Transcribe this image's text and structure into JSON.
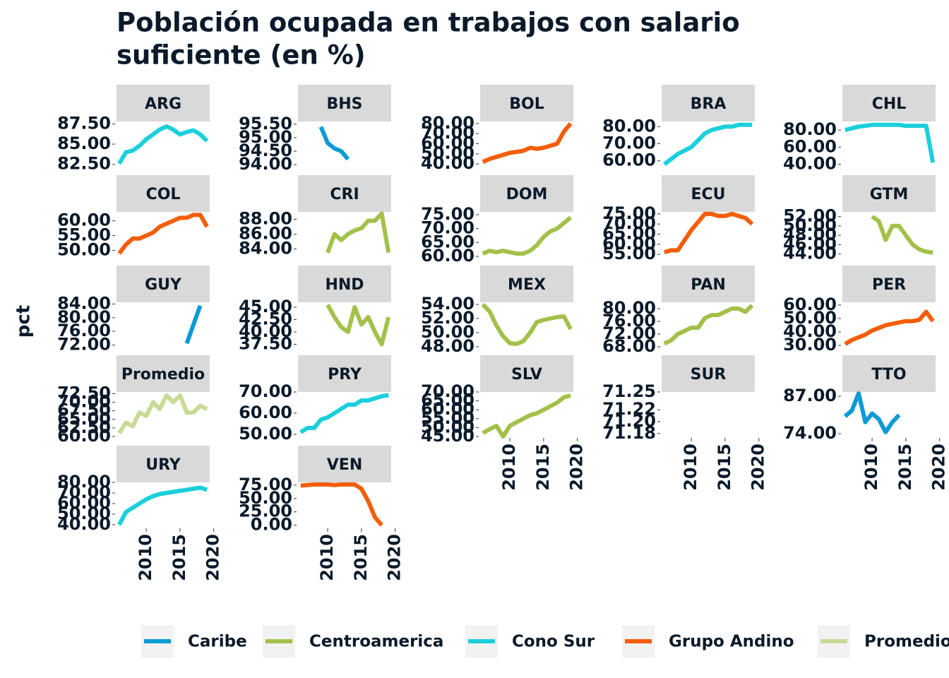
{
  "figure": {
    "title": [
      "Población ocupada en trabajos con salario",
      "suficiente (en %)"
    ],
    "ylabel": "pct",
    "legend": [
      {
        "name": "Caribe",
        "color": "#0d9ad6"
      },
      {
        "name": "Centroamerica",
        "color": "#a3c14a"
      },
      {
        "name": "Cono Sur",
        "color": "#1bcfdb"
      },
      {
        "name": "Grupo Andino",
        "color": "#f45d0a"
      },
      {
        "name": "Promedio",
        "color": "#c8db96"
      }
    ]
  },
  "chart_data": [
    {
      "type": "line",
      "title": "ARG",
      "color": "#1bcfdb",
      "x": [
        2006,
        2007,
        2008,
        2009,
        2010,
        2011,
        2012,
        2013,
        2014,
        2015,
        2016,
        2017,
        2018,
        2019
      ],
      "values": [
        82.6,
        84,
        84.2,
        84.8,
        85.6,
        86.2,
        86.8,
        87.2,
        86.8,
        86.2,
        86.5,
        86.7,
        86.2,
        85.4
      ],
      "xlim": [
        2005.6,
        2019.4
      ],
      "ylim": [
        82.3,
        87.8
      ],
      "yticks": [
        {
          "value": 82.5,
          "label": "82.50"
        },
        {
          "value": 85,
          "label": "85.00"
        },
        {
          "value": 87.5,
          "label": "87.50"
        }
      ]
    },
    {
      "type": "line",
      "title": "BHS",
      "color": "#0d9ad6",
      "x": [
        2009,
        2010,
        2011,
        2012,
        2013
      ],
      "values": [
        95.4,
        94.8,
        94.6,
        94.5,
        94.2
      ],
      "xlim": [
        2005.6,
        2019.4
      ],
      "ylim": [
        93.95,
        95.6
      ],
      "yticks": [
        {
          "value": 94,
          "label": "94.00"
        },
        {
          "value": 94.5,
          "label": "94.50"
        },
        {
          "value": 95,
          "label": "95.00"
        },
        {
          "value": 95.5,
          "label": "95.50"
        }
      ]
    },
    {
      "type": "line",
      "title": "BOL",
      "color": "#f45d0a",
      "x": [
        2006,
        2007,
        2008,
        2009,
        2010,
        2011,
        2012,
        2013,
        2014,
        2015,
        2016,
        2017,
        2018,
        2019
      ],
      "values": [
        42,
        45,
        47,
        49,
        51,
        52,
        53,
        56,
        55,
        56,
        58,
        60,
        72,
        80
      ],
      "xlim": [
        2005.6,
        2019.4
      ],
      "ylim": [
        38,
        82
      ],
      "yticks": [
        {
          "value": 40,
          "label": "40.00"
        },
        {
          "value": 50,
          "label": "50.00"
        },
        {
          "value": 60,
          "label": "60.00"
        },
        {
          "value": 70,
          "label": "70.00"
        },
        {
          "value": 80,
          "label": "80.00"
        }
      ]
    },
    {
      "type": "line",
      "title": "BRA",
      "color": "#1bcfdb",
      "x": [
        2006,
        2007,
        2008,
        2009,
        2010,
        2011,
        2012,
        2013,
        2014,
        2015,
        2016,
        2017,
        2018,
        2019
      ],
      "values": [
        58,
        61,
        64,
        66,
        68,
        72,
        76,
        78,
        79,
        80,
        80,
        81,
        81,
        81
      ],
      "xlim": [
        2005.6,
        2019.4
      ],
      "ylim": [
        57,
        83
      ],
      "yticks": [
        {
          "value": 60,
          "label": "60.00"
        },
        {
          "value": 70,
          "label": "70.00"
        },
        {
          "value": 80,
          "label": "80.00"
        }
      ]
    },
    {
      "type": "line",
      "title": "CHL",
      "color": "#1bcfdb",
      "x": [
        2006,
        2007,
        2008,
        2009,
        2010,
        2011,
        2012,
        2013,
        2014,
        2015,
        2016,
        2017,
        2018,
        2019
      ],
      "values": [
        80,
        82,
        84,
        85,
        86,
        86,
        86,
        86,
        86,
        85,
        85,
        85,
        85,
        42
      ],
      "xlim": [
        2005.6,
        2019.4
      ],
      "ylim": [
        38,
        90
      ],
      "yticks": [
        {
          "value": 40,
          "label": "40.00"
        },
        {
          "value": 60,
          "label": "60.00"
        },
        {
          "value": 80,
          "label": "80.00"
        }
      ]
    },
    {
      "type": "line",
      "title": "COL",
      "color": "#f45d0a",
      "x": [
        2006,
        2007,
        2008,
        2009,
        2010,
        2011,
        2012,
        2013,
        2014,
        2015,
        2016,
        2017,
        2018,
        2019
      ],
      "values": [
        49,
        52,
        54,
        54,
        55,
        56,
        58,
        59,
        60,
        61,
        61,
        62,
        62,
        58
      ],
      "xlim": [
        2005.6,
        2019.4
      ],
      "ylim": [
        48,
        63
      ],
      "yticks": [
        {
          "value": 50,
          "label": "50.00"
        },
        {
          "value": 55,
          "label": "55.00"
        },
        {
          "value": 60,
          "label": "60.00"
        }
      ]
    },
    {
      "type": "line",
      "title": "CRI",
      "color": "#a3c14a",
      "x": [
        2010,
        2011,
        2012,
        2013,
        2014,
        2015,
        2016,
        2017,
        2018,
        2019
      ],
      "values": [
        83.5,
        86,
        85.2,
        86,
        86.5,
        86.8,
        87.8,
        87.8,
        88.8,
        83.5
      ],
      "xlim": [
        2005.6,
        2019.4
      ],
      "ylim": [
        83,
        89
      ],
      "yticks": [
        {
          "value": 84,
          "label": "84.00"
        },
        {
          "value": 86,
          "label": "86.00"
        },
        {
          "value": 88,
          "label": "88.00"
        }
      ]
    },
    {
      "type": "line",
      "title": "DOM",
      "color": "#a3c14a",
      "x": [
        2006,
        2007,
        2008,
        2009,
        2010,
        2011,
        2012,
        2013,
        2014,
        2015,
        2016,
        2017,
        2018,
        2019
      ],
      "values": [
        61,
        62,
        61.5,
        62,
        61.5,
        61,
        61,
        62,
        64,
        67,
        69,
        70,
        72,
        74
      ],
      "xlim": [
        2005.6,
        2019.4
      ],
      "ylim": [
        60,
        76
      ],
      "yticks": [
        {
          "value": 60,
          "label": "60.00"
        },
        {
          "value": 65,
          "label": "65.00"
        },
        {
          "value": 70,
          "label": "70.00"
        },
        {
          "value": 75,
          "label": "75.00"
        }
      ]
    },
    {
      "type": "line",
      "title": "ECU",
      "color": "#f45d0a",
      "x": [
        2006,
        2007,
        2008,
        2009,
        2010,
        2011,
        2012,
        2013,
        2014,
        2015,
        2016,
        2017,
        2018,
        2019
      ],
      "values": [
        56,
        57,
        57,
        62,
        67,
        71,
        75,
        75,
        74,
        74,
        75,
        74,
        73,
        70
      ],
      "xlim": [
        2005.6,
        2019.4
      ],
      "ylim": [
        54,
        76
      ],
      "yticks": [
        {
          "value": 55,
          "label": "55.00"
        },
        {
          "value": 60,
          "label": "60.00"
        },
        {
          "value": 65,
          "label": "65.00"
        },
        {
          "value": 70,
          "label": "70.00"
        },
        {
          "value": 75,
          "label": "75.00"
        }
      ]
    },
    {
      "type": "line",
      "title": "GTM",
      "color": "#a3c14a",
      "x": [
        2010,
        2011,
        2012,
        2013,
        2014,
        2015,
        2016,
        2017,
        2018,
        2019
      ],
      "values": [
        52,
        51,
        47,
        50,
        50,
        48,
        46,
        45,
        44.5,
        44.3
      ],
      "xlim": [
        2005.6,
        2019.4
      ],
      "ylim": [
        43.5,
        53
      ],
      "yticks": [
        {
          "value": 44,
          "label": "44.00"
        },
        {
          "value": 46,
          "label": "46.00"
        },
        {
          "value": 48,
          "label": "48.00"
        },
        {
          "value": 50,
          "label": "50.00"
        },
        {
          "value": 52,
          "label": "52.00"
        }
      ]
    },
    {
      "type": "line",
      "title": "GUY",
      "color": "#0d9ad6",
      "x": [
        2016,
        2017,
        2018
      ],
      "values": [
        72.5,
        78,
        83.5
      ],
      "xlim": [
        2005.6,
        2019.4
      ],
      "ylim": [
        71.5,
        84.5
      ],
      "yticks": [
        {
          "value": 72,
          "label": "72.00"
        },
        {
          "value": 76,
          "label": "76.00"
        },
        {
          "value": 80,
          "label": "80.00"
        },
        {
          "value": 84,
          "label": "84.00"
        }
      ]
    },
    {
      "type": "line",
      "title": "HND",
      "color": "#a3c14a",
      "x": [
        2010,
        2011,
        2012,
        2013,
        2014,
        2015,
        2016,
        2017,
        2018,
        2019
      ],
      "values": [
        45.5,
        43,
        41,
        40,
        45,
        41.5,
        43,
        40,
        37.5,
        43
      ],
      "xlim": [
        2005.6,
        2019.4
      ],
      "ylim": [
        37,
        46
      ],
      "yticks": [
        {
          "value": 37.5,
          "label": "37.50"
        },
        {
          "value": 40,
          "label": "40.00"
        },
        {
          "value": 42.5,
          "label": "42.50"
        },
        {
          "value": 45,
          "label": "45.00"
        }
      ]
    },
    {
      "type": "line",
      "title": "MEX",
      "color": "#a3c14a",
      "x": [
        2006,
        2007,
        2008,
        2009,
        2010,
        2011,
        2012,
        2013,
        2014,
        2015,
        2016,
        2017,
        2018,
        2019
      ],
      "values": [
        54,
        53,
        51,
        49.5,
        48.5,
        48.4,
        48.8,
        50,
        51.5,
        51.8,
        52,
        52.2,
        52.3,
        50.5
      ],
      "xlim": [
        2005.6,
        2019.4
      ],
      "ylim": [
        48,
        54.3
      ],
      "yticks": [
        {
          "value": 48,
          "label": "48.00"
        },
        {
          "value": 50,
          "label": "50.00"
        },
        {
          "value": 52,
          "label": "52.00"
        },
        {
          "value": 54,
          "label": "54.00"
        }
      ]
    },
    {
      "type": "line",
      "title": "PAN",
      "color": "#a3c14a",
      "x": [
        2006,
        2007,
        2008,
        2009,
        2010,
        2011,
        2012,
        2013,
        2014,
        2015,
        2016,
        2017,
        2018,
        2019
      ],
      "values": [
        69,
        70,
        72,
        73,
        74,
        74,
        77,
        78,
        78,
        79,
        80,
        80,
        79,
        81
      ],
      "xlim": [
        2005.6,
        2019.4
      ],
      "ylim": [
        68,
        82
      ],
      "yticks": [
        {
          "value": 68,
          "label": "68.00"
        },
        {
          "value": 72,
          "label": "72.00"
        },
        {
          "value": 76,
          "label": "76.00"
        },
        {
          "value": 80,
          "label": "80.00"
        }
      ]
    },
    {
      "type": "line",
      "title": "PER",
      "color": "#f45d0a",
      "x": [
        2006,
        2007,
        2008,
        2009,
        2010,
        2011,
        2012,
        2013,
        2014,
        2015,
        2016,
        2017,
        2018,
        2019
      ],
      "values": [
        31,
        34,
        36,
        38,
        41,
        43,
        45,
        46,
        47,
        48,
        48,
        49,
        55,
        48
      ],
      "xlim": [
        2005.6,
        2019.4
      ],
      "ylim": [
        29,
        62
      ],
      "yticks": [
        {
          "value": 30,
          "label": "30.00"
        },
        {
          "value": 40,
          "label": "40.00"
        },
        {
          "value": 50,
          "label": "50.00"
        },
        {
          "value": 60,
          "label": "60.00"
        }
      ]
    },
    {
      "type": "line",
      "title": "Promedio",
      "color": "#c8db96",
      "x": [
        2006,
        2007,
        2008,
        2009,
        2010,
        2011,
        2012,
        2013,
        2014,
        2015,
        2016,
        2017,
        2018,
        2019
      ],
      "values": [
        61,
        64,
        63,
        67,
        66,
        70,
        68,
        72,
        70,
        72,
        67,
        67,
        69,
        68
      ],
      "xlim": [
        2005.6,
        2019.4
      ],
      "ylim": [
        60,
        73
      ],
      "yticks": [
        {
          "value": 60,
          "label": "60.00"
        },
        {
          "value": 62.5,
          "label": "62.50"
        },
        {
          "value": 65,
          "label": "65.00"
        },
        {
          "value": 67.5,
          "label": "67.50"
        },
        {
          "value": 70,
          "label": "70.00"
        },
        {
          "value": 72.5,
          "label": "72.50"
        }
      ]
    },
    {
      "type": "line",
      "title": "PRY",
      "color": "#1bcfdb",
      "x": [
        2006,
        2007,
        2008,
        2009,
        2010,
        2011,
        2012,
        2013,
        2014,
        2015,
        2016,
        2017,
        2018,
        2019
      ],
      "values": [
        51,
        53,
        53,
        57,
        58,
        60,
        62,
        64,
        64,
        66,
        66,
        67,
        68,
        68.5
      ],
      "xlim": [
        2005.6,
        2019.4
      ],
      "ylim": [
        49,
        70
      ],
      "yticks": [
        {
          "value": 50,
          "label": "50.00"
        },
        {
          "value": 60,
          "label": "60.00"
        },
        {
          "value": 70,
          "label": "70.00"
        }
      ]
    },
    {
      "type": "line",
      "title": "SLV",
      "color": "#a3c14a",
      "x": [
        2006,
        2007,
        2008,
        2009,
        2010,
        2011,
        2012,
        2013,
        2014,
        2015,
        2016,
        2017,
        2018,
        2019
      ],
      "values": [
        47,
        49,
        51,
        45,
        51,
        53,
        55,
        57,
        58,
        60,
        62,
        64,
        67,
        68
      ],
      "xlim": [
        2005.6,
        2019.4
      ],
      "ylim": [
        45,
        70
      ],
      "yticks": [
        {
          "value": 45,
          "label": "45.00"
        },
        {
          "value": 50,
          "label": "50.00"
        },
        {
          "value": 55,
          "label": "55.00"
        },
        {
          "value": 60,
          "label": "60.00"
        },
        {
          "value": 65,
          "label": "65.00"
        },
        {
          "value": 70,
          "label": "70.00"
        }
      ],
      "xticks": [
        2010,
        2015,
        2020
      ]
    },
    {
      "type": "line",
      "title": "SUR",
      "color": "#0d9ad6",
      "x": [],
      "values": [],
      "xlim": [
        2005.6,
        2019.4
      ],
      "ylim": [
        71.175,
        71.25
      ],
      "yticks": [
        {
          "value": 71.18,
          "label": "71.18"
        },
        {
          "value": 71.2,
          "label": "71.20"
        },
        {
          "value": 71.22,
          "label": "71.22"
        },
        {
          "value": 71.25,
          "label": "71.25"
        }
      ],
      "xticks": [
        2010,
        2015,
        2020
      ]
    },
    {
      "type": "line",
      "title": "TTO",
      "color": "#0d9ad6",
      "x": [
        2006,
        2007,
        2008,
        2009,
        2010,
        2011,
        2012,
        2013,
        2014
      ],
      "values": [
        80,
        82,
        88,
        78,
        81,
        79,
        74.5,
        78,
        80.5
      ],
      "xlim": [
        2005.6,
        2019.4
      ],
      "ylim": [
        73,
        88.5
      ],
      "yticks": [
        {
          "value": 74,
          "label": "74.00"
        },
        {
          "value": 87,
          "label": "87.00"
        }
      ],
      "xticks": [
        2010,
        2015,
        2020
      ]
    },
    {
      "type": "line",
      "title": "URY",
      "color": "#1bcfdb",
      "x": [
        2006,
        2007,
        2008,
        2009,
        2010,
        2011,
        2012,
        2013,
        2014,
        2015,
        2016,
        2017,
        2018,
        2019
      ],
      "values": [
        40,
        52,
        56,
        60,
        64,
        67,
        69,
        70,
        71,
        72,
        73,
        74,
        75,
        73
      ],
      "xlim": [
        2005.6,
        2019.4
      ],
      "ylim": [
        38,
        80
      ],
      "yticks": [
        {
          "value": 40,
          "label": "40.00"
        },
        {
          "value": 50,
          "label": "50.00"
        },
        {
          "value": 60,
          "label": "60.00"
        },
        {
          "value": 70,
          "label": "70.00"
        },
        {
          "value": 80,
          "label": "80.00"
        }
      ],
      "xticks": [
        2010,
        2015,
        2020
      ]
    },
    {
      "type": "line",
      "title": "VEN",
      "color": "#f45d0a",
      "x": [
        2006,
        2007,
        2008,
        2009,
        2010,
        2011,
        2012,
        2013,
        2014,
        2015,
        2016,
        2017,
        2018
      ],
      "values": [
        74,
        75,
        76,
        76,
        76,
        75,
        76,
        76,
        76,
        68,
        45,
        15,
        0
      ],
      "xlim": [
        2005.6,
        2019.4
      ],
      "ylim": [
        -3,
        80
      ],
      "yticks": [
        {
          "value": 0,
          "label": "0.00"
        },
        {
          "value": 25,
          "label": "25.00"
        },
        {
          "value": 50,
          "label": "50.00"
        },
        {
          "value": 75,
          "label": "75.00"
        }
      ],
      "xticks": [
        2010,
        2015,
        2020
      ]
    }
  ]
}
